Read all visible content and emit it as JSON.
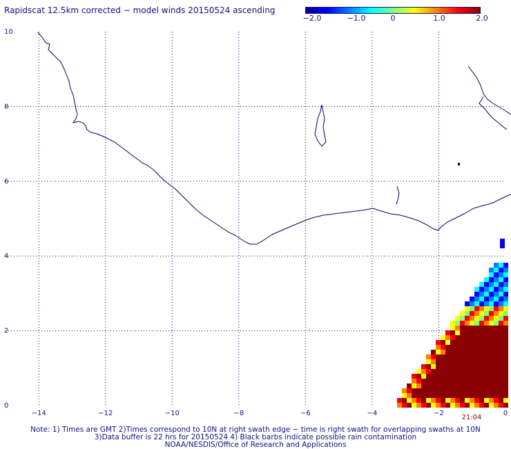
{
  "title": "Rapidscat 12.5km corrected − model winds 20150524 ascending",
  "colorbar": {
    "colors": [
      "#00008b",
      "#0000ff",
      "#0080ff",
      "#00ffff",
      "#80ff80",
      "#ffff00",
      "#ff8000",
      "#ff0000",
      "#8b0000"
    ],
    "ticks": [
      "−2.0",
      "−1.0",
      "0",
      "1.0",
      "2.0"
    ],
    "range": [
      -2.0,
      2.0
    ]
  },
  "map": {
    "x_ticks": [
      "−14",
      "−12",
      "−10",
      "−8",
      "−6",
      "−4",
      "−2",
      "0"
    ],
    "y_ticks": [
      "0",
      "2",
      "4",
      "6",
      "8",
      "10"
    ],
    "lon_range": [
      -15,
      0
    ],
    "lat_range": [
      0,
      10
    ],
    "grid": true,
    "swath_time": "21:04",
    "coast_color": "#000066",
    "grid_color": "#000080"
  },
  "notes": {
    "line1": "Note: 1) Times are GMT 2)Times correspond to 10N at right swath edge − time is right swath for overlapping swaths at 10N",
    "line2": "3)Data buffer is 22 hrs for 20150524 4) Black barbs indicate possible rain contamination",
    "line3": "NOAA/NESDIS/Office of Research and Applications"
  }
}
